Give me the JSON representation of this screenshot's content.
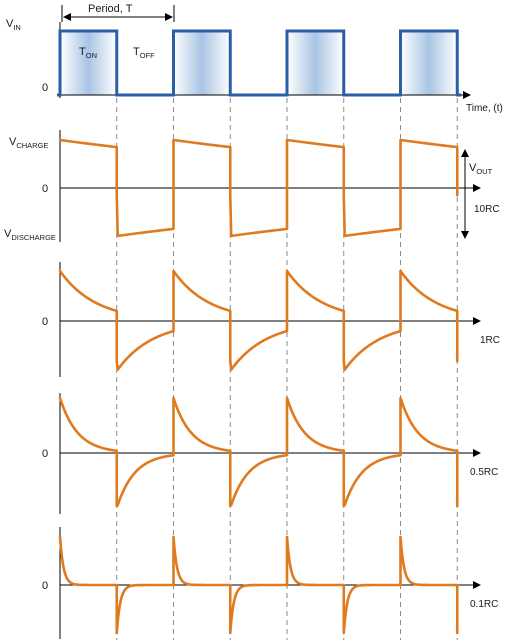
{
  "input": {
    "v_label": "V",
    "v_sub": "IN",
    "zero": "0",
    "period_label": "Period, T",
    "t_on": "T",
    "t_on_sub": "ON",
    "t_off": "T",
    "t_off_sub": "OFF",
    "time_label": "Time, (t)"
  },
  "output": {
    "vcharge": "V",
    "vcharge_sub": "CHARGE",
    "vdischarge": "V",
    "vdischarge_sub": "DISCHARGE",
    "vout": "V",
    "vout_sub": "OUT"
  },
  "traces": [
    {
      "label": "10RC",
      "zero": "0",
      "rc_ratio": 10
    },
    {
      "label": "1RC",
      "zero": "0",
      "rc_ratio": 1
    },
    {
      "label": "0.5RC",
      "zero": "0",
      "rc_ratio": 0.5
    },
    {
      "label": "0.1RC",
      "zero": "0",
      "rc_ratio": 0.1
    }
  ],
  "colors": {
    "pulse": "#2a5fa8",
    "waveform": "#e07a1f",
    "pulse_fill_edge": "#ffffff",
    "pulse_fill_center": "#a9c4e4"
  },
  "cycles": 4
}
